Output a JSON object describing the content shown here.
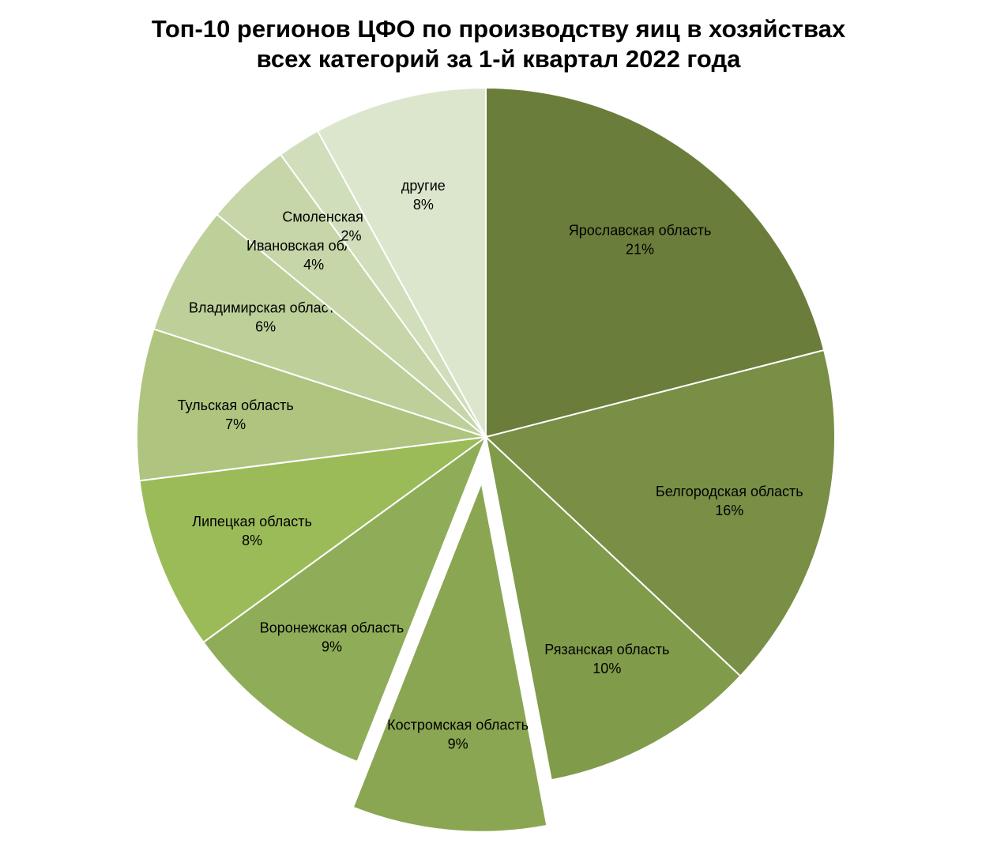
{
  "chart_data": {
    "type": "pie",
    "title_line1": "Топ-10 регионов ЦФО по производству яиц в хозяйствах",
    "title_line2": "всех категорий за 1-й квартал 2022 года",
    "start_angle_deg": 0,
    "direction": "clockwise",
    "exploded_slice": "Костромская область",
    "slices": [
      {
        "label": "Ярославская область",
        "value": 21,
        "display": "21%",
        "color": "#6a7d3a"
      },
      {
        "label": "Белгородская область",
        "value": 16,
        "display": "16%",
        "color": "#788f45"
      },
      {
        "label": "Рязанская область",
        "value": 10,
        "display": "10%",
        "color": "#809b4a"
      },
      {
        "label": "Костромская область",
        "value": 9,
        "display": "9%",
        "color": "#8aa652"
      },
      {
        "label": "Воронежская область",
        "value": 9,
        "display": "9%",
        "color": "#8fad58"
      },
      {
        "label": "Липецкая область",
        "value": 8,
        "display": "8%",
        "color": "#9bbb59"
      },
      {
        "label": "Тульская область",
        "value": 7,
        "display": "7%",
        "color": "#aec47f"
      },
      {
        "label": "Владимирская область",
        "value": 6,
        "display": "6%",
        "color": "#bdd09a"
      },
      {
        "label": "Ивановская область",
        "value": 4,
        "display": "4%",
        "color": "#c6d6a9"
      },
      {
        "label": "Смоленская область",
        "value": 2,
        "display": "2%",
        "color": "#d0debb"
      },
      {
        "label": "другие",
        "value": 8,
        "display": "8%",
        "color": "#dce6cd"
      }
    ]
  }
}
